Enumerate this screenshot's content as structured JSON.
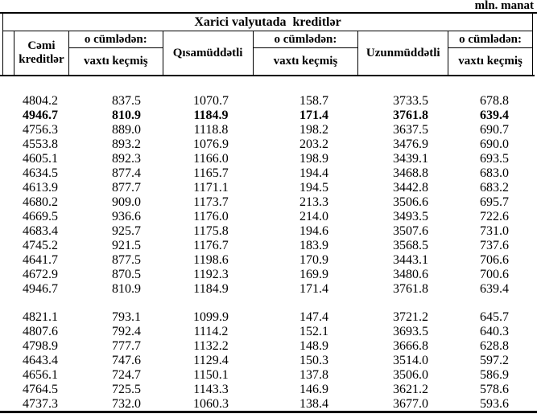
{
  "unit_label": "mln. manat",
  "table": {
    "group_header": "Xarici valyutada  kreditlər",
    "header": {
      "cemi": "Cəmi kreditlər",
      "o_cumleden": "o cümlədən:",
      "vaxti_kecmis": "vaxtı keçmiş",
      "qisamuddetli": "Qısamüddətli",
      "uzunmuddetli": "Uzunmüddətli"
    },
    "bold_row_block1": 1,
    "rows_block1": [
      [
        "4804.2",
        "837.5",
        "1070.7",
        "158.7",
        "3733.5",
        "678.8"
      ],
      [
        "4946.7",
        "810.9",
        "1184.9",
        "171.4",
        "3761.8",
        "639.4"
      ],
      [
        "4756.3",
        "889.0",
        "1118.8",
        "198.2",
        "3637.5",
        "690.7"
      ],
      [
        "4553.8",
        "893.2",
        "1076.9",
        "203.2",
        "3476.9",
        "690.0"
      ],
      [
        "4605.1",
        "892.3",
        "1166.0",
        "198.9",
        "3439.1",
        "693.5"
      ],
      [
        "4634.5",
        "877.4",
        "1165.7",
        "194.4",
        "3468.8",
        "683.0"
      ],
      [
        "4613.9",
        "877.7",
        "1171.1",
        "194.5",
        "3442.8",
        "683.2"
      ],
      [
        "4680.2",
        "909.0",
        "1173.7",
        "213.3",
        "3506.6",
        "695.7"
      ],
      [
        "4669.5",
        "936.6",
        "1176.0",
        "214.0",
        "3493.5",
        "722.6"
      ],
      [
        "4683.4",
        "925.7",
        "1175.8",
        "194.6",
        "3507.6",
        "731.0"
      ],
      [
        "4745.2",
        "921.5",
        "1176.7",
        "183.9",
        "3568.5",
        "737.6"
      ],
      [
        "4641.7",
        "877.5",
        "1198.6",
        "170.9",
        "3443.1",
        "706.6"
      ],
      [
        "4672.9",
        "870.5",
        "1192.3",
        "169.9",
        "3480.6",
        "700.6"
      ],
      [
        "4946.7",
        "810.9",
        "1184.9",
        "171.4",
        "3761.8",
        "639.4"
      ]
    ],
    "rows_block2": [
      [
        "4821.1",
        "793.1",
        "1099.9",
        "147.4",
        "3721.2",
        "645.7"
      ],
      [
        "4807.6",
        "792.4",
        "1114.2",
        "152.1",
        "3693.5",
        "640.3"
      ],
      [
        "4798.9",
        "777.7",
        "1132.2",
        "148.9",
        "3666.8",
        "628.8"
      ],
      [
        "4643.4",
        "747.6",
        "1129.4",
        "150.3",
        "3514.0",
        "597.2"
      ],
      [
        "4656.1",
        "724.7",
        "1150.1",
        "137.8",
        "3506.0",
        "586.9"
      ],
      [
        "4764.5",
        "725.5",
        "1143.3",
        "146.9",
        "3621.2",
        "578.6"
      ],
      [
        "4737.3",
        "732.0",
        "1060.3",
        "138.4",
        "3677.0",
        "593.6"
      ]
    ]
  }
}
